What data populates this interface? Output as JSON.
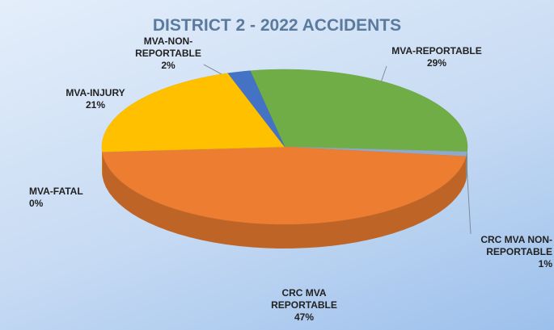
{
  "chart_data": {
    "type": "pie",
    "title": "DISTRICT 2 - 2022 ACCIDENTS",
    "categories": [
      "MVA-REPORTABLE",
      "CRC MVA NON-REPORTABLE",
      "CRC MVA REPORTABLE",
      "MVA-FATAL",
      "MVA-INJURY",
      "MVA-NON-REPORTABLE"
    ],
    "values": [
      29,
      1,
      47,
      0,
      21,
      2
    ],
    "value_labels": [
      "29%",
      "1%",
      "47%",
      "0%",
      "21%",
      "2%"
    ],
    "colors": [
      "#70ad47",
      "#8fa9c9",
      "#ed7d31",
      "#a5a5a5",
      "#ffc000",
      "#4472c4"
    ],
    "legend": false
  }
}
